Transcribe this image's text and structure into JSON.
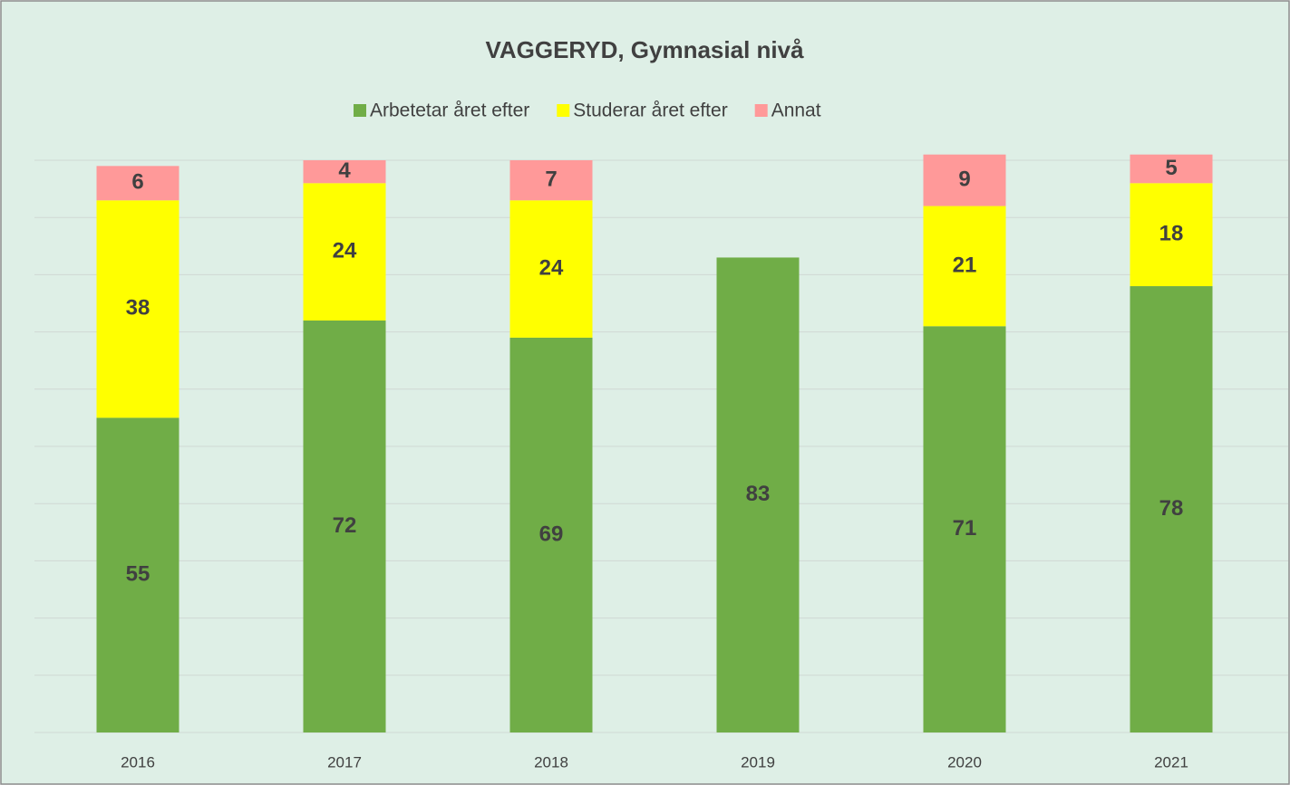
{
  "chart_data": {
    "type": "stacked_bar",
    "title": "VAGGERYD, Gymnasial nivå",
    "categories": [
      "2016",
      "2017",
      "2018",
      "2019",
      "2020",
      "2021"
    ],
    "series": [
      {
        "name": "Arbetetar året efter",
        "color": "#70ad47",
        "values": [
          55,
          72,
          69,
          83,
          71,
          78
        ]
      },
      {
        "name": "Studerar året efter",
        "color": "#ffff00",
        "values": [
          38,
          24,
          24,
          null,
          21,
          18
        ]
      },
      {
        "name": "Annat",
        "color": "#ff9999",
        "values": [
          6,
          4,
          7,
          null,
          9,
          5
        ]
      }
    ],
    "ylim": [
      0,
      100
    ],
    "yticks": [
      0,
      10,
      20,
      30,
      40,
      50,
      60,
      70,
      80,
      90,
      100
    ],
    "grid": true,
    "legend": "top"
  }
}
